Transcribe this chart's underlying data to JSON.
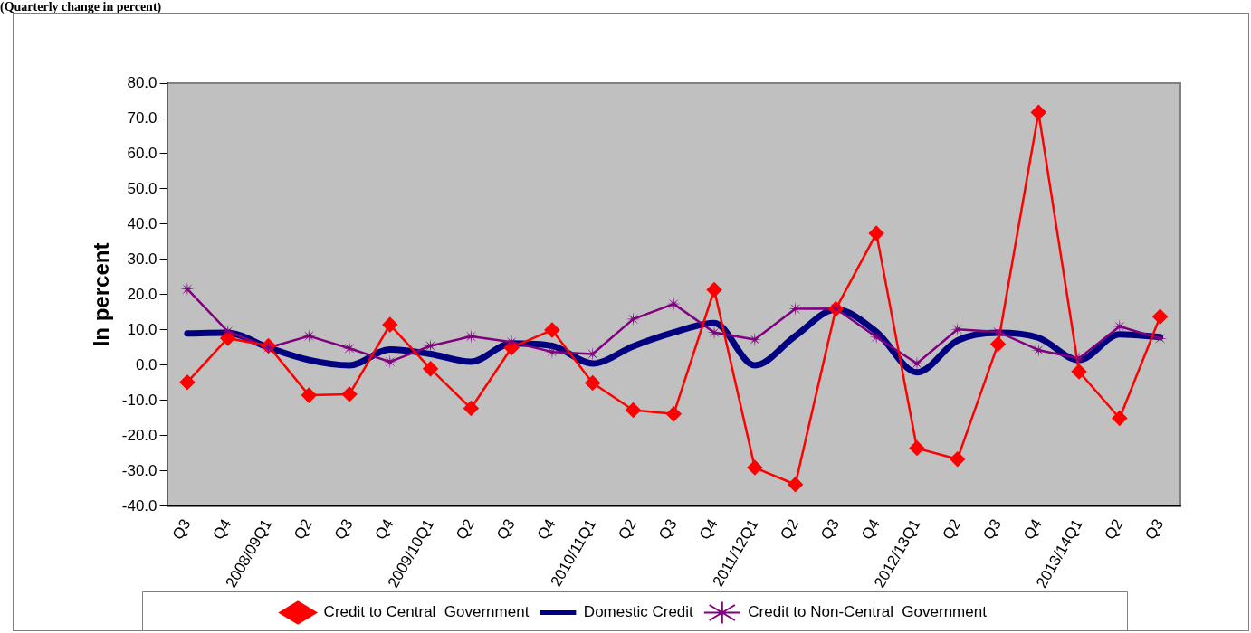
{
  "chart_data": {
    "type": "line",
    "title": "(Quarterly change in percent)",
    "ylabel": "In percent",
    "categories": [
      "Q3",
      "Q4",
      "2008/09Q1",
      "Q2",
      "Q3",
      "Q4",
      "2009/10Q1",
      "Q2",
      "Q3",
      "Q4",
      "2010/11Q1",
      "Q2",
      "Q3",
      "Q4",
      "2011/12Q1",
      "Q2",
      "Q3",
      "Q4",
      "2012/13Q1",
      "Q2",
      "Q3",
      "Q4",
      "2013/14Q1",
      "Q2",
      "Q3"
    ],
    "series": [
      {
        "name": "Credit to Central  Government",
        "color": "#ff0000",
        "marker": "diamond",
        "values": [
          -4.8,
          7.7,
          5.5,
          -8.5,
          -8.2,
          11.5,
          -1.0,
          -12.2,
          5.0,
          10.0,
          -5.0,
          -12.7,
          -13.8,
          21.4,
          -29.0,
          -33.8,
          16.0,
          37.4,
          -23.5,
          -26.6,
          6.0,
          71.7,
          -1.8,
          -15.0,
          13.8
        ]
      },
      {
        "name": "Domestic Credit",
        "color": "#000080",
        "marker": "none",
        "values": [
          9.0,
          9.2,
          5.0,
          1.5,
          0.0,
          4.5,
          3.2,
          1.0,
          6.2,
          5.5,
          0.5,
          5.4,
          9.3,
          12.0,
          0.0,
          8.3,
          15.8,
          9.5,
          -2.0,
          7.0,
          9.2,
          7.8,
          1.5,
          8.8,
          8.0
        ]
      },
      {
        "name": "Credit to Non-Central  Government",
        "color": "#800080",
        "marker": "star",
        "values": [
          21.6,
          9.6,
          5.0,
          8.3,
          4.8,
          1.0,
          5.5,
          8.2,
          6.6,
          3.8,
          3.2,
          13.1,
          17.4,
          9.3,
          7.3,
          16.0,
          16.1,
          8.0,
          0.5,
          10.2,
          9.5,
          4.3,
          2.0,
          11.0,
          7.6
        ]
      }
    ],
    "ylim": [
      -40,
      80
    ],
    "yticks": [
      {
        "value": -40,
        "label": "-40.0"
      },
      {
        "value": -30,
        "label": "-30.0"
      },
      {
        "value": -20,
        "label": "-20.0"
      },
      {
        "value": -10,
        "label": "-10.0"
      },
      {
        "value": 0,
        "label": "0.0"
      },
      {
        "value": 10,
        "label": "10.0"
      },
      {
        "value": 20,
        "label": "20.0"
      },
      {
        "value": 30,
        "label": "30.0"
      },
      {
        "value": 40,
        "label": "40.0"
      },
      {
        "value": 50,
        "label": "50.0"
      },
      {
        "value": 60,
        "label": "60.0"
      },
      {
        "value": 70,
        "label": "70.0"
      },
      {
        "value": 80,
        "label": "80.0"
      }
    ],
    "grid": false,
    "legend": "bottom"
  }
}
